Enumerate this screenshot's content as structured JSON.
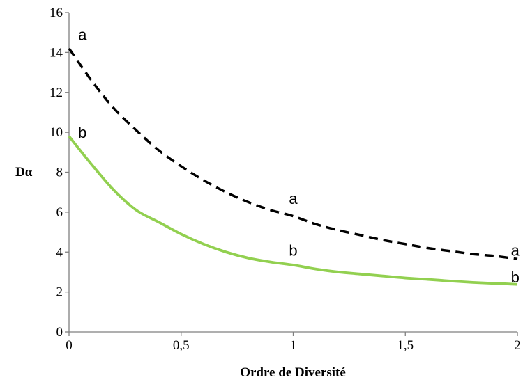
{
  "chart_data": {
    "type": "line",
    "xlabel": "Ordre de Diversité",
    "ylabel": "Dα",
    "xlim": [
      0,
      2
    ],
    "ylim": [
      0,
      16
    ],
    "x_ticks": [
      "0",
      "0,5",
      "1",
      "1,5",
      "2"
    ],
    "y_ticks": [
      "0",
      "2",
      "4",
      "6",
      "8",
      "10",
      "12",
      "14",
      "16"
    ],
    "grid": false,
    "legend": "none",
    "series": [
      {
        "style": "dashed",
        "color": "#000000",
        "x": [
          0,
          0.1,
          0.2,
          0.3,
          0.4,
          0.5,
          0.6,
          0.7,
          0.8,
          0.9,
          1.0,
          1.1,
          1.2,
          1.3,
          1.4,
          1.5,
          1.6,
          1.7,
          1.8,
          1.9,
          2.0
        ],
        "values": [
          14.2,
          12.6,
          11.2,
          10.1,
          9.1,
          8.3,
          7.6,
          7.0,
          6.5,
          6.1,
          5.8,
          5.4,
          5.1,
          4.85,
          4.6,
          4.4,
          4.2,
          4.05,
          3.9,
          3.8,
          3.65
        ]
      },
      {
        "style": "solid",
        "color": "#92d050",
        "x": [
          0,
          0.1,
          0.2,
          0.3,
          0.4,
          0.5,
          0.6,
          0.7,
          0.8,
          0.9,
          1.0,
          1.1,
          1.2,
          1.3,
          1.4,
          1.5,
          1.6,
          1.7,
          1.8,
          1.9,
          2.0
        ],
        "values": [
          9.8,
          8.4,
          7.1,
          6.1,
          5.5,
          4.9,
          4.4,
          4.0,
          3.7,
          3.5,
          3.35,
          3.15,
          3.0,
          2.9,
          2.8,
          2.7,
          2.63,
          2.55,
          2.48,
          2.43,
          2.38
        ]
      }
    ],
    "annotations": [
      {
        "text": "a",
        "x": 0.06,
        "y": 14.9
      },
      {
        "text": "b",
        "x": 0.06,
        "y": 10.0
      },
      {
        "text": "a",
        "x": 1.0,
        "y": 6.7
      },
      {
        "text": "b",
        "x": 1.0,
        "y": 4.1
      },
      {
        "text": "a",
        "x": 1.99,
        "y": 4.1
      },
      {
        "text": "b",
        "x": 1.99,
        "y": 2.75
      }
    ]
  }
}
